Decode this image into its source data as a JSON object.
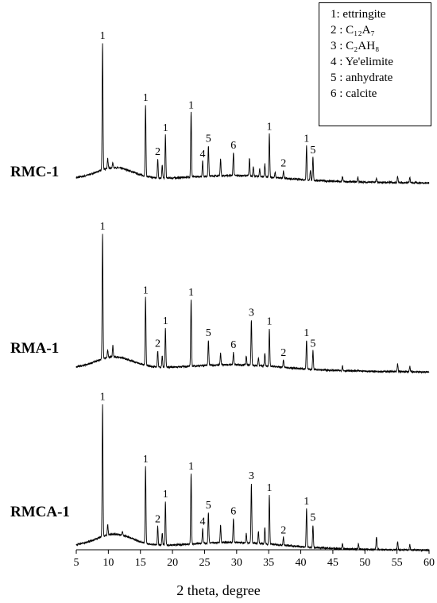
{
  "chart_data": {
    "type": "line",
    "title": "",
    "xlabel": "2 theta, degree",
    "ylabel": "",
    "xlim": [
      5,
      60
    ],
    "xticks": [
      5,
      10,
      15,
      20,
      25,
      30,
      35,
      40,
      45,
      50,
      55,
      60
    ],
    "legend": {
      "placement": "top-right",
      "entries": [
        {
          "num": "1",
          "sep": ": ",
          "name": "ettringite"
        },
        {
          "num": "2",
          "sep": " : ",
          "name": "C₁₂A₇"
        },
        {
          "num": "3",
          "sep": " : ",
          "name": "C₂AH₈"
        },
        {
          "num": "4",
          "sep": " : ",
          "name": "Ye'elimite"
        },
        {
          "num": "5",
          "sep": " : ",
          "name": "anhydrate"
        },
        {
          "num": "6",
          "sep": " : ",
          "name": "calcite"
        }
      ]
    },
    "series": [
      {
        "name": "RMC-1",
        "peaks": [
          [
            9.1,
            100
          ],
          [
            9.9,
            8
          ],
          [
            10.7,
            4
          ],
          [
            15.8,
            56
          ],
          [
            17.7,
            15
          ],
          [
            18.4,
            10
          ],
          [
            18.9,
            34
          ],
          [
            22.9,
            51
          ],
          [
            24.7,
            12
          ],
          [
            25.6,
            24
          ],
          [
            27.5,
            13
          ],
          [
            29.5,
            18
          ],
          [
            32.0,
            14
          ],
          [
            32.6,
            7
          ],
          [
            33.6,
            6
          ],
          [
            34.4,
            10
          ],
          [
            35.1,
            34
          ],
          [
            36.0,
            4
          ],
          [
            37.3,
            6
          ],
          [
            40.9,
            27
          ],
          [
            41.5,
            8
          ],
          [
            41.9,
            18
          ],
          [
            46.5,
            4
          ],
          [
            48.9,
            4
          ],
          [
            51.8,
            3
          ],
          [
            55.1,
            5
          ],
          [
            57.0,
            4
          ]
        ],
        "peak_labels": [
          [
            9.1,
            "1"
          ],
          [
            15.8,
            "1"
          ],
          [
            17.7,
            "2"
          ],
          [
            18.9,
            "1"
          ],
          [
            22.9,
            "1"
          ],
          [
            24.7,
            "4"
          ],
          [
            25.6,
            "5"
          ],
          [
            29.5,
            "6"
          ],
          [
            35.1,
            "1"
          ],
          [
            37.3,
            "2"
          ],
          [
            40.9,
            "1"
          ],
          [
            41.9,
            "5"
          ]
        ]
      },
      {
        "name": "RMA-1",
        "peaks": [
          [
            9.1,
            100
          ],
          [
            9.9,
            6
          ],
          [
            10.7,
            9
          ],
          [
            15.8,
            54
          ],
          [
            17.7,
            13
          ],
          [
            18.4,
            9
          ],
          [
            18.9,
            31
          ],
          [
            22.9,
            53
          ],
          [
            25.6,
            20
          ],
          [
            27.5,
            9
          ],
          [
            29.5,
            10
          ],
          [
            31.5,
            7
          ],
          [
            32.3,
            36
          ],
          [
            33.4,
            6
          ],
          [
            34.4,
            10
          ],
          [
            35.1,
            30
          ],
          [
            37.3,
            6
          ],
          [
            40.9,
            23
          ],
          [
            41.9,
            15
          ],
          [
            46.5,
            4
          ],
          [
            55.1,
            6
          ],
          [
            57.0,
            4
          ]
        ],
        "peak_labels": [
          [
            9.1,
            "1"
          ],
          [
            15.8,
            "1"
          ],
          [
            17.7,
            "2"
          ],
          [
            18.9,
            "1"
          ],
          [
            22.9,
            "1"
          ],
          [
            25.6,
            "5"
          ],
          [
            29.5,
            "6"
          ],
          [
            32.3,
            "3"
          ],
          [
            35.1,
            "1"
          ],
          [
            37.3,
            "2"
          ],
          [
            40.9,
            "1"
          ],
          [
            41.9,
            "5"
          ]
        ]
      },
      {
        "name": "RMCA-1",
        "peaks": [
          [
            9.1,
            100
          ],
          [
            9.9,
            8
          ],
          [
            12.2,
            3
          ],
          [
            15.8,
            58
          ],
          [
            17.7,
            14
          ],
          [
            18.4,
            9
          ],
          [
            18.9,
            33
          ],
          [
            22.9,
            53
          ],
          [
            24.7,
            11
          ],
          [
            25.6,
            23
          ],
          [
            27.5,
            13
          ],
          [
            29.5,
            18
          ],
          [
            31.5,
            7
          ],
          [
            32.3,
            45
          ],
          [
            33.4,
            9
          ],
          [
            34.4,
            12
          ],
          [
            35.1,
            37
          ],
          [
            37.3,
            6
          ],
          [
            40.9,
            29
          ],
          [
            41.9,
            17
          ],
          [
            46.5,
            4
          ],
          [
            49.0,
            4
          ],
          [
            51.8,
            10
          ],
          [
            55.1,
            6
          ],
          [
            57.0,
            4
          ]
        ],
        "peak_labels": [
          [
            9.1,
            "1"
          ],
          [
            15.8,
            "1"
          ],
          [
            17.7,
            "2"
          ],
          [
            18.9,
            "1"
          ],
          [
            22.9,
            "1"
          ],
          [
            24.7,
            "4"
          ],
          [
            25.6,
            "5"
          ],
          [
            29.5,
            "6"
          ],
          [
            32.3,
            "3"
          ],
          [
            35.1,
            "1"
          ],
          [
            37.3,
            "2"
          ],
          [
            40.9,
            "1"
          ],
          [
            41.9,
            "5"
          ]
        ]
      }
    ]
  }
}
